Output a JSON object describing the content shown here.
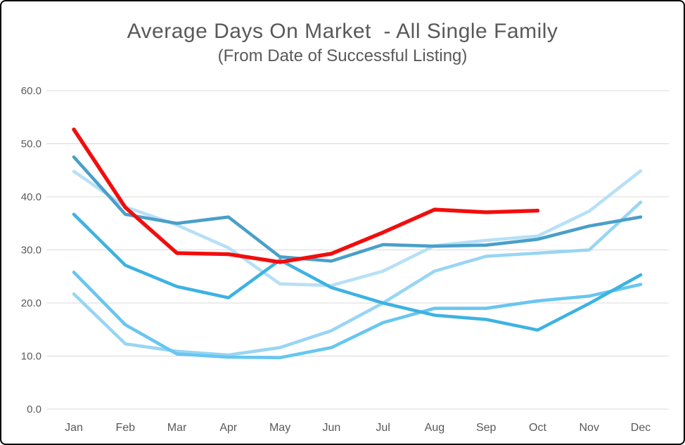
{
  "style": {
    "title_color": "#595959",
    "axis_label_color": "#595959",
    "gridline_color": "#d9d9d9",
    "background": "#ffffff",
    "border_color": "#000000"
  },
  "chart_data": {
    "type": "line",
    "title": "Average Days On Market  - All Single Family",
    "subtitle": "(From Date of Successful Listing)",
    "categories": [
      "Jan",
      "Feb",
      "Mar",
      "Apr",
      "May",
      "Jun",
      "Jul",
      "Aug",
      "Sep",
      "Oct",
      "Nov",
      "Dec"
    ],
    "y_ticks": [
      "0.0",
      "10.0",
      "20.0",
      "30.0",
      "40.0",
      "50.0",
      "60.0"
    ],
    "ylim": [
      0,
      60
    ],
    "y_step": 10,
    "grid": "horizontal",
    "legend": "none",
    "xlabel": "",
    "ylabel": "",
    "series": [
      {
        "name": "year-palest-blue",
        "color": "#b6e0f7",
        "width": 4.6,
        "values": [
          44.8,
          38.1,
          34.7,
          30.4,
          23.6,
          23.3,
          26.0,
          30.8,
          31.8,
          32.6,
          37.3,
          44.9
        ]
      },
      {
        "name": "year-pale-blue",
        "color": "#98d5f4",
        "width": 4.6,
        "values": [
          21.7,
          12.3,
          10.9,
          10.2,
          11.6,
          14.8,
          20.0,
          26.0,
          28.8,
          29.4,
          30.0,
          39.0
        ]
      },
      {
        "name": "year-light-blue",
        "color": "#67c6f0",
        "width": 4.6,
        "values": [
          25.8,
          15.9,
          10.4,
          9.8,
          9.7,
          11.6,
          16.3,
          19.0,
          19.0,
          20.4,
          21.3,
          23.5
        ]
      },
      {
        "name": "year-cyan-blue",
        "color": "#3db2e2",
        "width": 4.6,
        "values": [
          36.7,
          27.1,
          23.1,
          21.0,
          28.1,
          22.9,
          20.0,
          17.7,
          16.9,
          14.9,
          19.9,
          25.3
        ]
      },
      {
        "name": "year-dark-blue",
        "color": "#4a9fc8",
        "width": 4.6,
        "values": [
          47.5,
          36.7,
          35.0,
          36.2,
          28.7,
          27.9,
          31.0,
          30.7,
          30.9,
          32.0,
          34.5,
          36.2
        ]
      },
      {
        "name": "current-year-red",
        "color": "#f20d0d",
        "width": 5.4,
        "values": [
          52.7,
          38.0,
          29.4,
          29.2,
          27.7,
          29.3,
          33.3,
          37.6,
          37.1,
          37.4,
          null,
          null
        ]
      }
    ]
  }
}
